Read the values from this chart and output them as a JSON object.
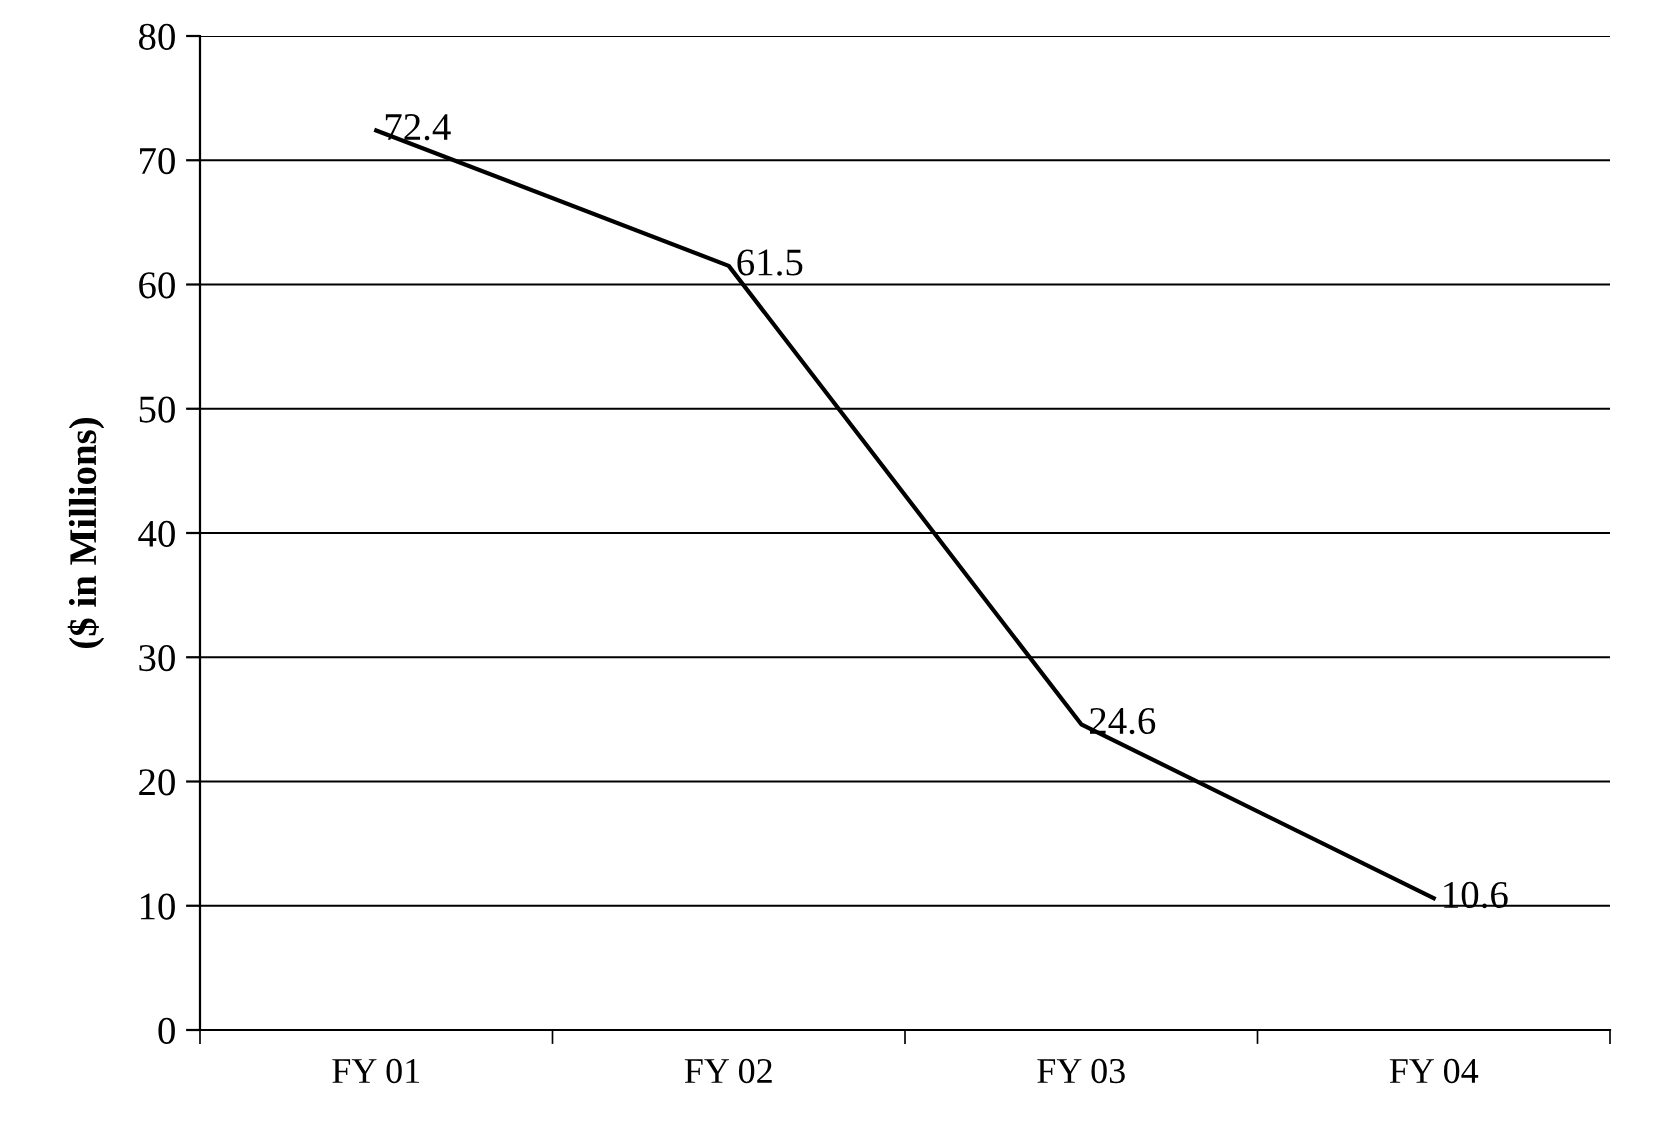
{
  "chart_data": {
    "type": "line",
    "ylabel": "($ in Millions)",
    "categories": [
      "FY 01",
      "FY 02",
      "FY 03",
      "FY 04"
    ],
    "series": [
      {
        "color": "#000000",
        "values": [
          72.4,
          61.5,
          24.6,
          10.6
        ]
      }
    ],
    "data_labels": true,
    "ylim": [
      0,
      80
    ],
    "yticks": [
      0,
      10,
      20,
      30,
      40,
      50,
      60,
      70,
      80
    ],
    "grid": "y",
    "marker": "none",
    "line_style": "solid",
    "legend": false
  }
}
